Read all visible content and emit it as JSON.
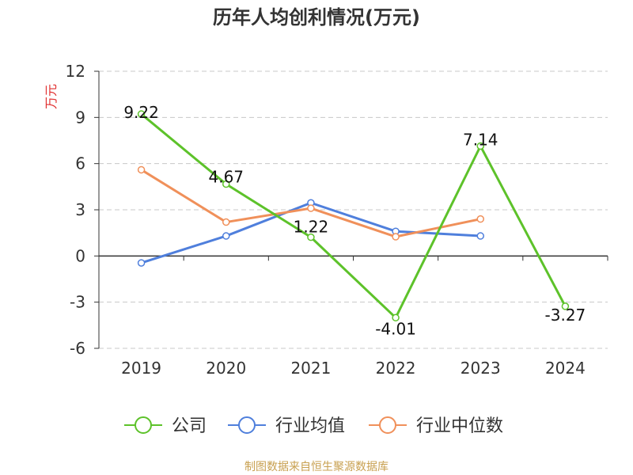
{
  "chart_data": {
    "type": "line",
    "title": "历年人均创利情况(万元)",
    "ylabel": "万元",
    "categories": [
      "2019",
      "2020",
      "2021",
      "2022",
      "2023",
      "2024"
    ],
    "ylim": [
      -6,
      12
    ],
    "yticks": [
      12,
      9,
      6,
      3,
      0,
      -3,
      -6
    ],
    "grid": true,
    "legend_position": "bottom",
    "series": [
      {
        "name": "公司",
        "color": "#5dc22a",
        "values": [
          9.22,
          4.67,
          1.22,
          -4.01,
          7.14,
          -3.27
        ],
        "labels": [
          "9.22",
          "4.67",
          "1.22",
          "-4.01",
          "7.14",
          "-3.27"
        ]
      },
      {
        "name": "行业均值",
        "color": "#4f7fdc",
        "values": [
          -0.45,
          1.3,
          3.45,
          1.6,
          1.3,
          null
        ]
      },
      {
        "name": "行业中位数",
        "color": "#f0905a",
        "values": [
          5.6,
          2.2,
          3.1,
          1.25,
          2.4,
          null
        ]
      }
    ]
  },
  "footer": {
    "source": "制图数据来自恒生聚源数据库"
  },
  "colors": {
    "ylabel": "#e03030",
    "axis": "#333333",
    "grid": "#c8c8c8",
    "source": "#c8a050"
  }
}
